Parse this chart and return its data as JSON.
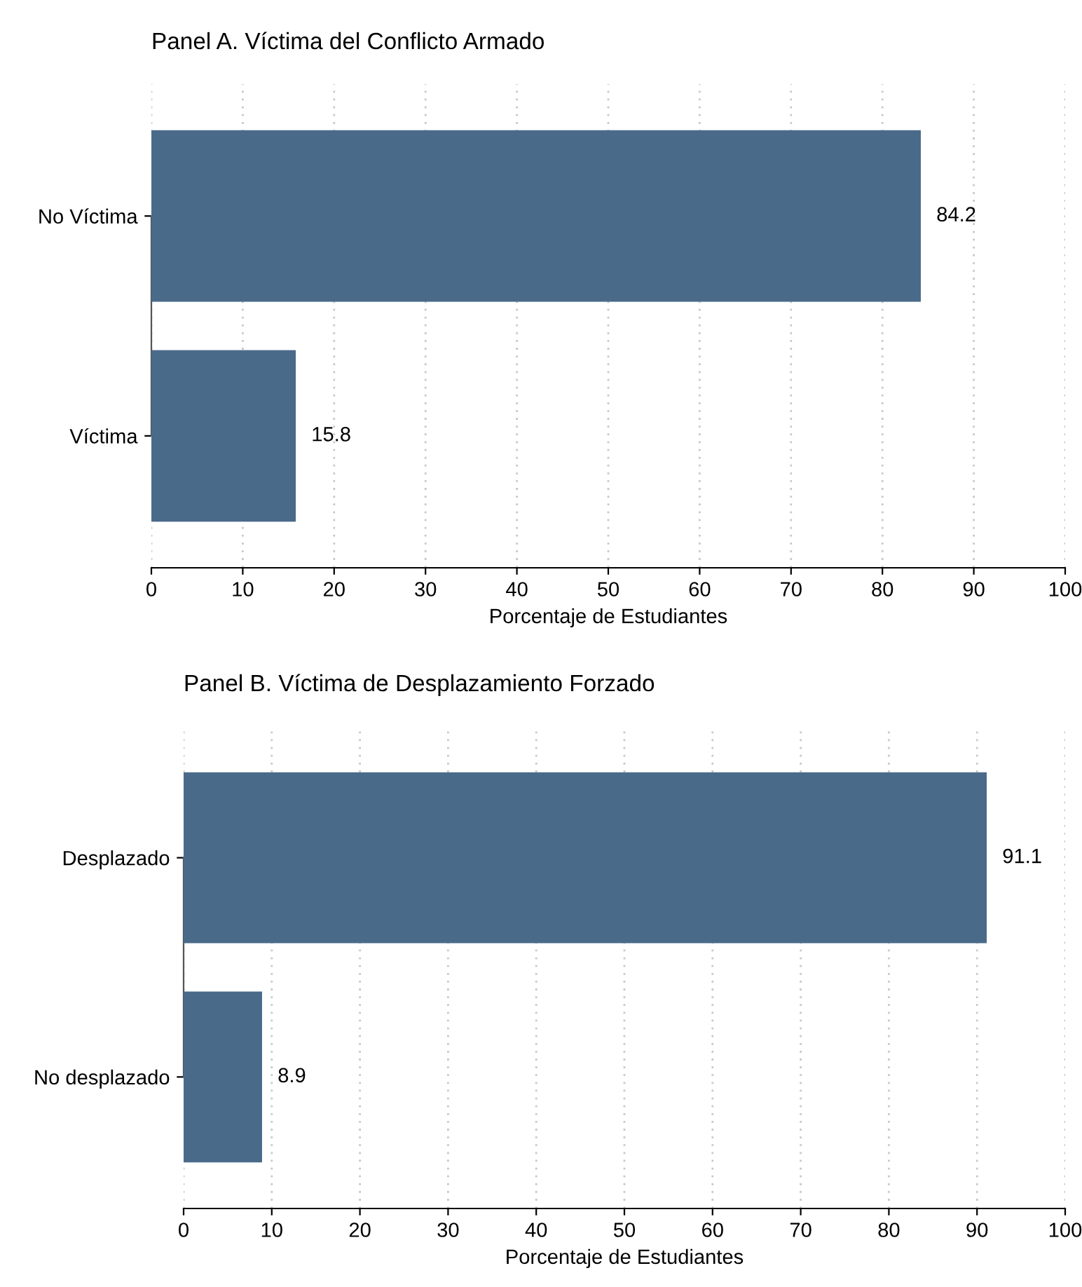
{
  "chart_data": [
    {
      "type": "bar",
      "orientation": "horizontal",
      "title": "Panel A. Víctima del Conflicto Armado",
      "xlabel": "Porcentaje de Estudiantes",
      "categories": [
        "No Víctima",
        "Víctima"
      ],
      "values": [
        84.2,
        15.8
      ],
      "color": "#4a6a8a",
      "xlim": [
        0,
        100
      ],
      "xticks": [
        0,
        10,
        20,
        30,
        40,
        50,
        60,
        70,
        80,
        90,
        100
      ],
      "grid": "x",
      "data_labels": true
    },
    {
      "type": "bar",
      "orientation": "horizontal",
      "title": "Panel B. Víctima de Desplazamiento Forzado",
      "xlabel": "Porcentaje de Estudiantes",
      "categories": [
        "Desplazado",
        "No desplazado"
      ],
      "values": [
        91.1,
        8.9
      ],
      "color": "#4a6a8a",
      "xlim": [
        0,
        100
      ],
      "xticks": [
        0,
        10,
        20,
        30,
        40,
        50,
        60,
        70,
        80,
        90,
        100
      ],
      "grid": "x",
      "data_labels": true
    }
  ]
}
